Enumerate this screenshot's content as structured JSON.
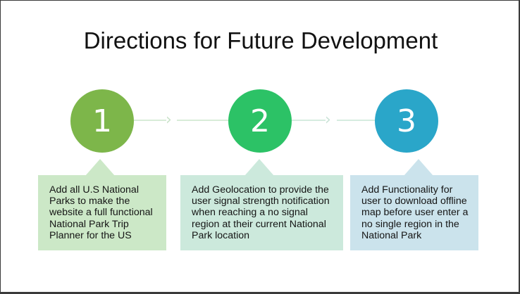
{
  "title": "Directions for Future Development",
  "steps": [
    {
      "number": "1",
      "text": "Add all U.S National Parks to make the website a full functional National Park Trip Planner for the US",
      "circle_color": "#7db64a",
      "box_color": "#cce8c7"
    },
    {
      "number": "2",
      "text": "Add Geolocation to provide the user signal strength notification when reaching a no signal region at their current National Park location",
      "circle_color": "#2cc266",
      "box_color": "#cce9dc"
    },
    {
      "number": "3",
      "text": "Add Functionality for user to download offline map before user enter a no single region in the National Park",
      "circle_color": "#2aa6c9",
      "box_color": "#cbe3ec"
    }
  ],
  "connectors": {
    "line_color": "#d8ecd8",
    "chevron_symbol": "›"
  }
}
